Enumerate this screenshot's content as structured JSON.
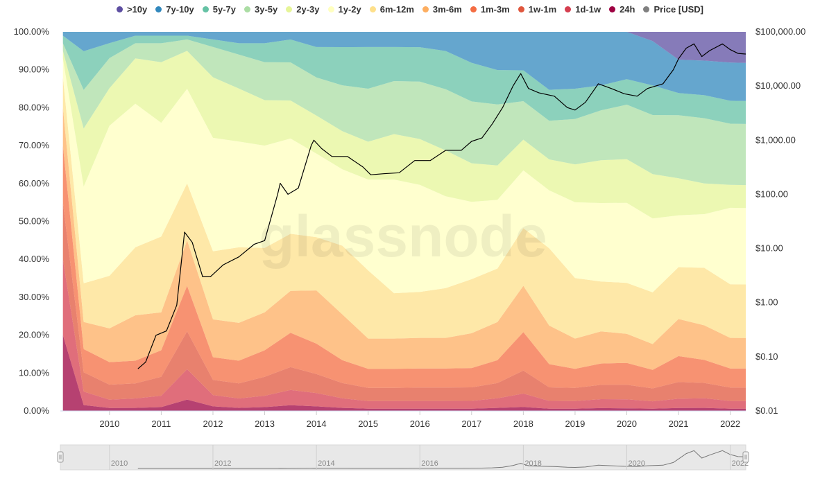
{
  "legend": {
    "items": [
      {
        "label": ">10y",
        "color": "#5e4fa2"
      },
      {
        "label": "7y-10y",
        "color": "#3288bd"
      },
      {
        "label": "5y-7y",
        "color": "#66c2a5"
      },
      {
        "label": "3y-5y",
        "color": "#abdda4"
      },
      {
        "label": "2y-3y",
        "color": "#e6f598"
      },
      {
        "label": "1y-2y",
        "color": "#ffffbf"
      },
      {
        "label": "6m-12m",
        "color": "#fee08b"
      },
      {
        "label": "3m-6m",
        "color": "#fdae61"
      },
      {
        "label": "1m-3m",
        "color": "#f46d43"
      },
      {
        "label": "1w-1m",
        "color": "#e0573e"
      },
      {
        "label": "1d-1w",
        "color": "#d53e4f"
      },
      {
        "label": "24h",
        "color": "#9e0142"
      },
      {
        "label": "Price [USD]",
        "color": "#808080"
      }
    ]
  },
  "watermark": "glassnode",
  "chart_data": {
    "type": "area",
    "stacked": true,
    "normalized": true,
    "x": [
      2009.1,
      2009.5,
      2010.0,
      2010.5,
      2011.0,
      2011.5,
      2012.0,
      2012.5,
      2013.0,
      2013.5,
      2014.0,
      2014.5,
      2015.0,
      2015.5,
      2016.0,
      2016.5,
      2017.0,
      2017.5,
      2018.0,
      2018.5,
      2019.0,
      2019.5,
      2020.0,
      2020.5,
      2021.0,
      2021.5,
      2022.0,
      2022.3
    ],
    "series": [
      {
        "name": "24h",
        "color": "#9e0142",
        "values": [
          20,
          1.5,
          0.8,
          0.8,
          1.0,
          3.0,
          1.2,
          0.8,
          1.0,
          1.5,
          1.2,
          0.8,
          0.6,
          0.6,
          0.6,
          0.6,
          0.6,
          0.8,
          1.0,
          0.6,
          0.6,
          0.8,
          0.7,
          0.6,
          0.8,
          0.8,
          0.6,
          0.6
        ]
      },
      {
        "name": "1d-1w",
        "color": "#d53e4f",
        "values": [
          20,
          3.5,
          2.2,
          2.5,
          3.0,
          8.0,
          3.0,
          2.5,
          3.0,
          4.0,
          3.5,
          2.5,
          2.0,
          2.0,
          2.0,
          2.0,
          2.0,
          2.5,
          3.5,
          2.0,
          2.0,
          2.5,
          2.5,
          2.0,
          2.5,
          2.5,
          2.0,
          2.0
        ]
      },
      {
        "name": "1w-1m",
        "color": "#e0573e",
        "values": [
          15,
          5,
          4,
          4,
          5,
          10,
          4,
          4,
          5,
          6,
          5,
          4,
          3.5,
          3.5,
          3.5,
          3.5,
          3.5,
          4,
          6,
          3.5,
          3.5,
          4,
          4,
          3.5,
          4.5,
          4.0,
          3.5,
          3.5
        ]
      },
      {
        "name": "1m-3m",
        "color": "#f46d43",
        "values": [
          15,
          6,
          6,
          6,
          7,
          12,
          6,
          6,
          7,
          9,
          8,
          6,
          5,
          5,
          5,
          5,
          5,
          6,
          10,
          6,
          5,
          6,
          6,
          5,
          7,
          6,
          5,
          5
        ]
      },
      {
        "name": "3m-6m",
        "color": "#fdae61",
        "values": [
          10,
          7,
          9,
          12,
          10,
          12,
          10,
          10,
          10,
          11,
          14,
          12,
          8,
          8,
          8,
          8,
          9,
          10,
          12,
          10,
          8,
          9,
          8,
          7,
          10,
          9,
          8,
          8
        ]
      },
      {
        "name": "6m-12m",
        "color": "#fee08b",
        "values": [
          8,
          10,
          14,
          18,
          20,
          15,
          18,
          20,
          17,
          15,
          14,
          18,
          18,
          12,
          12,
          13,
          14,
          14,
          15,
          20,
          16,
          14,
          14,
          14,
          14,
          15,
          14,
          14
        ]
      },
      {
        "name": "1y-2y",
        "color": "#ffffbf",
        "values": [
          5,
          25,
          40,
          38,
          30,
          25,
          30,
          28,
          27,
          25,
          22,
          20,
          24,
          30,
          28,
          24,
          20,
          18,
          15,
          15,
          20,
          22,
          22,
          20,
          14,
          14,
          20,
          20
        ]
      },
      {
        "name": "2y-3y",
        "color": "#e6f598",
        "values": [
          2,
          15,
          10,
          12,
          16,
          10,
          16,
          14,
          12,
          10,
          10,
          10,
          10,
          12,
          12,
          12,
          10,
          9,
          8,
          8,
          10,
          12,
          12,
          12,
          10,
          8,
          6,
          6
        ]
      },
      {
        "name": "3y-5y",
        "color": "#abdda4",
        "values": [
          2,
          10,
          8,
          4,
          5,
          3,
          8,
          9,
          10,
          10,
          10,
          12,
          14,
          14,
          15,
          16,
          16,
          16,
          10,
          10,
          12,
          14,
          15,
          16,
          17,
          17,
          16,
          16
        ]
      },
      {
        "name": "5y-7y",
        "color": "#66c2a5",
        "values": [
          2,
          10,
          4,
          2,
          2,
          1,
          2,
          3,
          5,
          6,
          8,
          10,
          11,
          9,
          9,
          10,
          10,
          9,
          8,
          8,
          8,
          7,
          7,
          8,
          6,
          6,
          6,
          6
        ]
      },
      {
        "name": "7y-10y",
        "color": "#3288bd",
        "values": [
          1,
          5,
          3,
          1,
          1,
          1,
          2,
          3,
          3,
          2,
          4,
          4,
          4,
          4,
          4,
          5,
          8,
          10,
          10,
          15,
          15,
          15,
          13,
          12,
          9,
          9,
          10,
          10
        ]
      },
      {
        "name": ">10y",
        "color": "#5e4fa2",
        "values": [
          0,
          0,
          0,
          0,
          0,
          0,
          0,
          0,
          0,
          0,
          0,
          0,
          0,
          0,
          0,
          0,
          0,
          0,
          0,
          0,
          0,
          0,
          0,
          2.5,
          7.5,
          7.5,
          8.0,
          8.1
        ]
      }
    ],
    "price": {
      "name": "Price [USD]",
      "color": "#000000",
      "x": [
        2010.55,
        2010.7,
        2010.9,
        2011.1,
        2011.3,
        2011.45,
        2011.6,
        2011.8,
        2011.95,
        2012.2,
        2012.5,
        2012.8,
        2013.0,
        2013.25,
        2013.3,
        2013.45,
        2013.65,
        2013.9,
        2013.95,
        2014.1,
        2014.3,
        2014.6,
        2014.9,
        2015.05,
        2015.3,
        2015.6,
        2015.9,
        2016.2,
        2016.5,
        2016.8,
        2017.0,
        2017.2,
        2017.4,
        2017.6,
        2017.8,
        2017.95,
        2018.1,
        2018.3,
        2018.6,
        2018.85,
        2019.0,
        2019.2,
        2019.45,
        2019.7,
        2019.95,
        2020.2,
        2020.4,
        2020.7,
        2020.9,
        2021.0,
        2021.15,
        2021.3,
        2021.45,
        2021.6,
        2021.85,
        2022.0,
        2022.15,
        2022.3
      ],
      "y": [
        0.06,
        0.08,
        0.25,
        0.3,
        0.9,
        20,
        13,
        3,
        3,
        5,
        7,
        12,
        14,
        100,
        160,
        100,
        130,
        800,
        1000,
        700,
        500,
        500,
        320,
        230,
        240,
        250,
        420,
        420,
        650,
        650,
        950,
        1100,
        2000,
        4000,
        10000,
        17000,
        9000,
        7500,
        6500,
        4000,
        3600,
        5000,
        11000,
        9000,
        7200,
        6500,
        9000,
        11000,
        20000,
        32000,
        50000,
        60000,
        35000,
        45000,
        60000,
        47000,
        40000,
        39000
      ]
    },
    "y_left": {
      "ticks": [
        "0.00%",
        "10.00%",
        "20.00%",
        "30.00%",
        "40.00%",
        "50.00%",
        "60.00%",
        "70.00%",
        "80.00%",
        "90.00%",
        "100.00%"
      ],
      "range": [
        0,
        100
      ]
    },
    "y_right": {
      "scale": "log",
      "ticks": [
        "$0.01",
        "$0.10",
        "$1.00",
        "$10.00",
        "$100.00",
        "$1,000.00",
        "$10,000.00",
        "$100,000.00"
      ],
      "range": [
        0.01,
        100000
      ]
    },
    "x_axis": {
      "ticks": [
        "2010",
        "2011",
        "2012",
        "2013",
        "2014",
        "2015",
        "2016",
        "2017",
        "2018",
        "2019",
        "2020",
        "2021",
        "2022"
      ],
      "range": [
        2009.05,
        2022.3
      ]
    },
    "navigator": {
      "ticks": [
        "2010",
        "2012",
        "2014",
        "2016",
        "2018",
        "2020",
        "2022"
      ]
    }
  }
}
